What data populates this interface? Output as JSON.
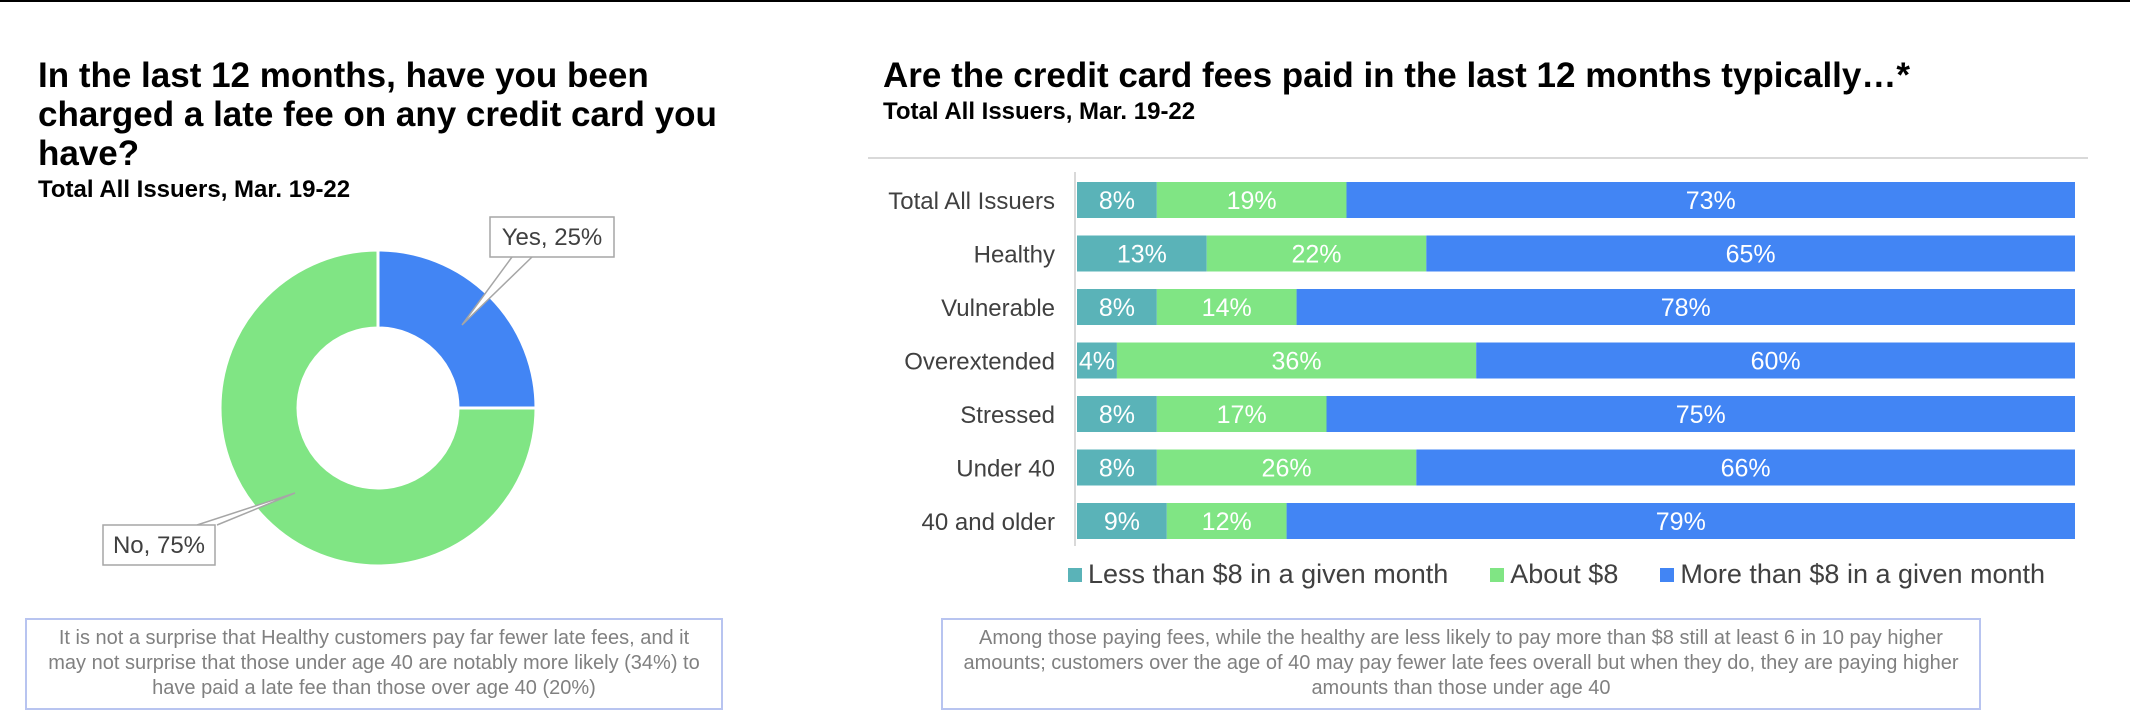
{
  "left_title": "In the last 12 months, have you been charged a late fee on any credit card you have?",
  "left_subtitle": "Total All Issuers, Mar. 19-22",
  "left_note": "It is not a surprise that Healthy customers pay far fewer late fees, and it may not surprise that those under age 40 are notably more likely (34%) to have paid a late fee than those over age 40 (20%)",
  "right_title": "Are the credit card fees paid in the last 12 months typically…*",
  "right_subtitle": "Total All Issuers, Mar. 19-22",
  "right_note": "Among those paying fees, while the healthy are less likely to pay more than $8 still at least 6 in 10 pay higher amounts; customers over the age of 40 may pay fewer late fees overall but when they do, they are paying higher amounts than those under age 40",
  "chart_data": [
    {
      "type": "pie",
      "donut": true,
      "slices": [
        {
          "label": "Yes, 25%",
          "value": 25,
          "color": "#4285f4"
        },
        {
          "label": "No, 75%",
          "value": 75,
          "color": "#80e584"
        }
      ]
    },
    {
      "type": "bar",
      "orientation": "horizontal",
      "stacked": true,
      "categories": [
        "Total All Issuers",
        "Healthy",
        "Vulnerable",
        "Overextended",
        "Stressed",
        "Under 40",
        "40 and older"
      ],
      "series": [
        {
          "name": "Less than $8 in a given month",
          "color": "#5ab3b8",
          "values": [
            8,
            13,
            8,
            4,
            8,
            8,
            9
          ]
        },
        {
          "name": "About $8",
          "color": "#80e584",
          "values": [
            19,
            22,
            14,
            36,
            17,
            26,
            12
          ]
        },
        {
          "name": "More than $8 in a given month",
          "color": "#4285f4",
          "values": [
            73,
            65,
            78,
            60,
            75,
            66,
            79
          ]
        }
      ],
      "value_suffix": "%",
      "legend_position": "bottom"
    }
  ]
}
